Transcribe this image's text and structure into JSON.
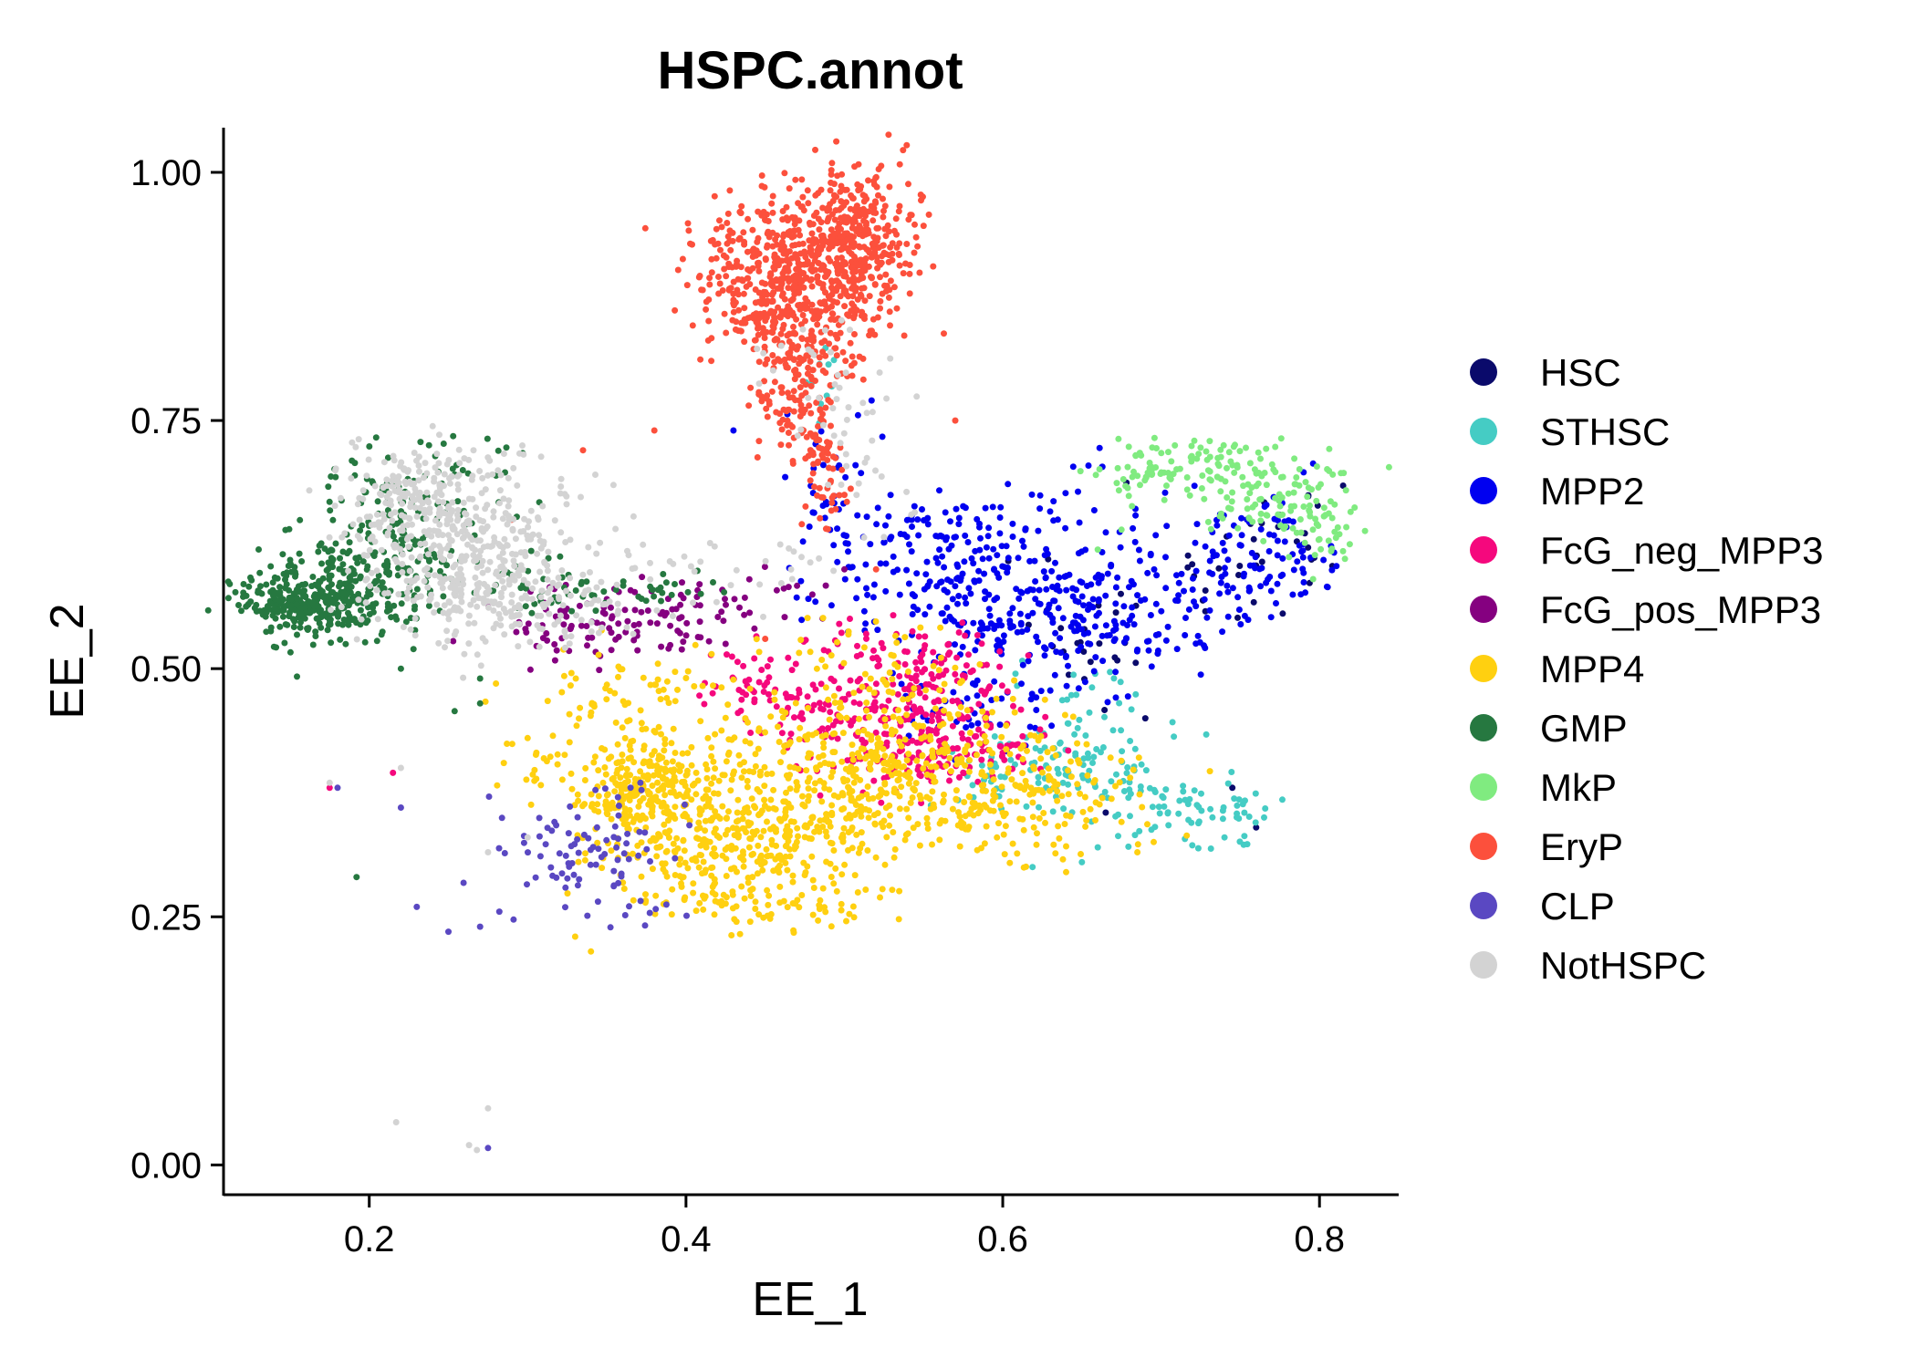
{
  "chart_data": {
    "type": "scatter",
    "title": "HSPC.annot",
    "xlabel": "EE_1",
    "ylabel": "EE_2",
    "xlim": [
      0.108,
      0.85
    ],
    "ylim": [
      -0.03,
      1.045
    ],
    "xticks": [
      0.2,
      0.4,
      0.6,
      0.8
    ],
    "xtick_labels": [
      "0.2",
      "0.4",
      "0.6",
      "0.8"
    ],
    "yticks": [
      0.0,
      0.25,
      0.5,
      0.75,
      1.0
    ],
    "ytick_labels": [
      "0.00",
      "0.25",
      "0.50",
      "0.75",
      "1.00"
    ],
    "grid": false,
    "legend_position": "right",
    "series": [
      {
        "name": "HSC",
        "color": "#0A0A6B",
        "clusters": [
          [
            0.66,
            0.54,
            0.03,
            0.04,
            25
          ],
          [
            0.74,
            0.6,
            0.03,
            0.03,
            20
          ],
          [
            0.78,
            0.64,
            0.02,
            0.02,
            15
          ]
        ],
        "points": [
          [
            0.665,
            0.355
          ],
          [
            0.69,
            0.45
          ],
          [
            0.76,
            0.34
          ],
          [
            0.745,
            0.38
          ]
        ]
      },
      {
        "name": "STHSC",
        "color": "#45CCC4",
        "clusters": [
          [
            0.63,
            0.4,
            0.04,
            0.025,
            110
          ],
          [
            0.7,
            0.37,
            0.03,
            0.02,
            60
          ],
          [
            0.74,
            0.35,
            0.02,
            0.015,
            25
          ],
          [
            0.65,
            0.47,
            0.02,
            0.02,
            20
          ],
          [
            0.49,
            0.8,
            0.01,
            0.02,
            12
          ]
        ],
        "points": [
          [
            0.65,
            0.305
          ],
          [
            0.74,
            0.33
          ],
          [
            0.765,
            0.35
          ],
          [
            0.66,
            0.32
          ]
        ]
      },
      {
        "name": "MPP2",
        "color": "#0000F0",
        "clusters": [
          [
            0.58,
            0.57,
            0.045,
            0.04,
            220
          ],
          [
            0.66,
            0.55,
            0.03,
            0.035,
            130
          ],
          [
            0.73,
            0.6,
            0.03,
            0.035,
            90
          ],
          [
            0.55,
            0.64,
            0.03,
            0.02,
            60
          ],
          [
            0.49,
            0.68,
            0.015,
            0.05,
            35
          ],
          [
            0.78,
            0.62,
            0.02,
            0.03,
            50
          ],
          [
            0.64,
            0.66,
            0.02,
            0.03,
            25
          ],
          [
            0.58,
            0.46,
            0.03,
            0.02,
            40
          ]
        ],
        "points": [
          [
            0.43,
            0.74
          ],
          [
            0.56,
            0.62
          ]
        ]
      },
      {
        "name": "FcG_neg_MPP3",
        "color": "#F5087D",
        "clusters": [
          [
            0.56,
            0.42,
            0.03,
            0.02,
            160
          ],
          [
            0.51,
            0.46,
            0.04,
            0.03,
            150
          ],
          [
            0.55,
            0.51,
            0.025,
            0.025,
            80
          ],
          [
            0.45,
            0.49,
            0.03,
            0.02,
            40
          ]
        ],
        "points": [
          [
            0.215,
            0.395
          ],
          [
            0.175,
            0.38
          ]
        ]
      },
      {
        "name": "FcG_pos_MPP3",
        "color": "#850080",
        "clusters": [
          [
            0.33,
            0.54,
            0.03,
            0.02,
            70
          ],
          [
            0.39,
            0.55,
            0.03,
            0.02,
            40
          ],
          [
            0.45,
            0.57,
            0.03,
            0.015,
            25
          ]
        ],
        "points": [
          [
            0.5,
            0.6
          ],
          [
            0.35,
            0.57
          ],
          [
            0.44,
            0.59
          ]
        ]
      },
      {
        "name": "MPP4",
        "color": "#FFD010",
        "clusters": [
          [
            0.38,
            0.38,
            0.02,
            0.02,
            170
          ],
          [
            0.44,
            0.35,
            0.05,
            0.04,
            420
          ],
          [
            0.53,
            0.4,
            0.05,
            0.035,
            300
          ],
          [
            0.61,
            0.36,
            0.04,
            0.03,
            140
          ],
          [
            0.42,
            0.3,
            0.04,
            0.03,
            130
          ],
          [
            0.34,
            0.42,
            0.03,
            0.035,
            70
          ],
          [
            0.53,
            0.48,
            0.04,
            0.03,
            80
          ],
          [
            0.46,
            0.26,
            0.03,
            0.015,
            40
          ],
          [
            0.38,
            0.48,
            0.03,
            0.03,
            45
          ]
        ],
        "points": [
          [
            0.3,
            0.43
          ],
          [
            0.28,
            0.485
          ],
          [
            0.285,
            0.405
          ],
          [
            0.34,
            0.215
          ],
          [
            0.33,
            0.23
          ],
          [
            0.64,
            0.295
          ],
          [
            0.685,
            0.315
          ]
        ]
      },
      {
        "name": "GMP",
        "color": "#267840",
        "clusters": [
          [
            0.155,
            0.565,
            0.018,
            0.013,
            180
          ],
          [
            0.18,
            0.58,
            0.03,
            0.025,
            220
          ],
          [
            0.21,
            0.63,
            0.025,
            0.045,
            130
          ],
          [
            0.24,
            0.68,
            0.03,
            0.025,
            45
          ],
          [
            0.3,
            0.58,
            0.02,
            0.015,
            35
          ],
          [
            0.37,
            0.58,
            0.025,
            0.012,
            30
          ]
        ],
        "points": [
          [
            0.192,
            0.29
          ],
          [
            0.22,
            0.5
          ],
          [
            0.27,
            0.465
          ],
          [
            0.27,
            0.49
          ]
        ]
      },
      {
        "name": "MkP",
        "color": "#80EB80",
        "clusters": [
          [
            0.72,
            0.71,
            0.025,
            0.015,
            70
          ],
          [
            0.77,
            0.68,
            0.025,
            0.02,
            80
          ],
          [
            0.8,
            0.645,
            0.015,
            0.02,
            50
          ],
          [
            0.69,
            0.69,
            0.02,
            0.015,
            25
          ]
        ],
        "points": [
          [
            0.675,
            0.64
          ],
          [
            0.66,
            0.62
          ]
        ]
      },
      {
        "name": "EryP",
        "color": "#FC503C",
        "clusters": [
          [
            0.47,
            0.89,
            0.03,
            0.045,
            650
          ],
          [
            0.51,
            0.94,
            0.015,
            0.03,
            250
          ],
          [
            0.465,
            0.8,
            0.012,
            0.04,
            100
          ],
          [
            0.48,
            0.73,
            0.008,
            0.035,
            60
          ],
          [
            0.49,
            0.68,
            0.005,
            0.02,
            25
          ]
        ],
        "points": [
          [
            0.335,
            0.72
          ],
          [
            0.38,
            0.74
          ],
          [
            0.57,
            0.75
          ],
          [
            0.52,
            0.6
          ],
          [
            0.29,
            0.65
          ],
          [
            0.45,
            0.53
          ]
        ]
      },
      {
        "name": "CLP",
        "color": "#5A48C2",
        "clusters": [
          [
            0.32,
            0.31,
            0.025,
            0.025,
            40
          ],
          [
            0.36,
            0.29,
            0.02,
            0.03,
            35
          ],
          [
            0.36,
            0.34,
            0.02,
            0.02,
            20
          ]
        ],
        "points": [
          [
            0.25,
            0.235
          ],
          [
            0.23,
            0.26
          ],
          [
            0.22,
            0.36
          ],
          [
            0.275,
            0.017
          ],
          [
            0.27,
            0.24
          ],
          [
            0.18,
            0.38
          ]
        ]
      },
      {
        "name": "NotHSPC",
        "color": "#D3D3D3",
        "clusters": [
          [
            0.26,
            0.62,
            0.035,
            0.045,
            450
          ],
          [
            0.23,
            0.68,
            0.02,
            0.025,
            100
          ],
          [
            0.31,
            0.57,
            0.03,
            0.02,
            100
          ],
          [
            0.49,
            0.8,
            0.02,
            0.04,
            30
          ],
          [
            0.44,
            0.6,
            0.04,
            0.02,
            30
          ],
          [
            0.51,
            0.71,
            0.02,
            0.025,
            20
          ]
        ],
        "points": [
          [
            0.217,
            0.043
          ],
          [
            0.263,
            0.02
          ],
          [
            0.268,
            0.015
          ],
          [
            0.275,
            0.057
          ],
          [
            0.175,
            0.385
          ],
          [
            0.22,
            0.4
          ],
          [
            0.275,
            0.315
          ],
          [
            0.3,
            0.33
          ]
        ]
      }
    ]
  }
}
